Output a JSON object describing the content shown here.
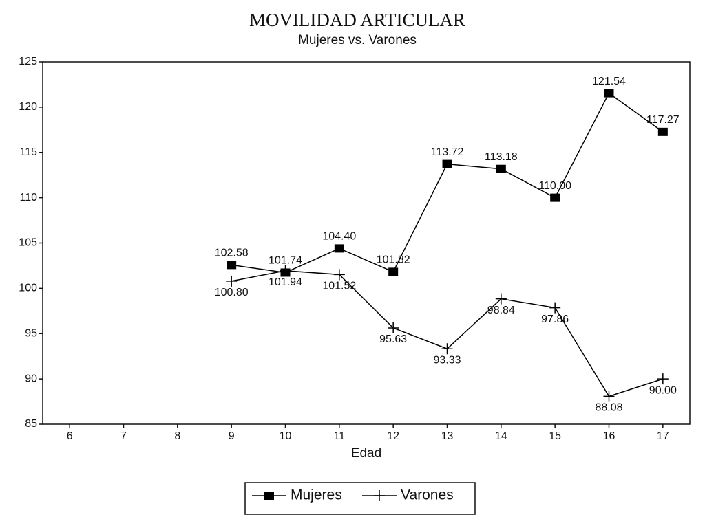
{
  "chart_data": {
    "type": "line",
    "title": "MOVILIDAD ARTICULAR",
    "subtitle": "Mujeres vs. Varones",
    "x_label": "Edad",
    "categories": [
      "6",
      "7",
      "8",
      "9",
      "10",
      "11",
      "12",
      "13",
      "14",
      "15",
      "16",
      "17"
    ],
    "ylim": [
      85,
      125
    ],
    "yticks": [
      85,
      90,
      95,
      100,
      105,
      110,
      115,
      120,
      125
    ],
    "legend": "bottom",
    "series": [
      {
        "name": "Mujeres",
        "color": "#000000",
        "marker": "square",
        "values": [
          null,
          null,
          null,
          102.58,
          101.74,
          104.4,
          101.82,
          113.72,
          113.18,
          110,
          121.54,
          117.27
        ],
        "value_labels": [
          null,
          null,
          null,
          "102.58",
          "101.74",
          "104.40",
          "101.82",
          "113.72",
          "113.18",
          "110.00",
          "121.54",
          "117.27"
        ]
      },
      {
        "name": "Varones",
        "color": "#000000",
        "marker": "plus",
        "values": [
          null,
          null,
          null,
          100.8,
          101.94,
          101.52,
          95.63,
          93.33,
          98.84,
          97.86,
          88.08,
          90
        ],
        "value_labels": [
          null,
          null,
          null,
          "100.80",
          "101.94",
          "101.52",
          "95.63",
          "93.33",
          "98.84",
          "97.86",
          "88.08",
          "90.00"
        ]
      }
    ]
  }
}
